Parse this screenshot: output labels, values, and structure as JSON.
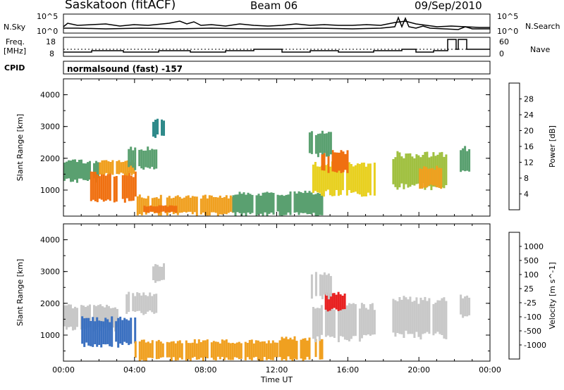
{
  "header": {
    "station": "Saskatoon (fitACF)",
    "beam": "Beam 06",
    "date": "09/Sep/2010"
  },
  "noise_panel": {
    "left_label": "N.Sky",
    "right_label": "N.Search",
    "left_ticks": [
      "10^5",
      "10^0"
    ],
    "right_ticks": [
      "10^5",
      "10^0"
    ]
  },
  "freq_panel": {
    "left_label_1": "Freq.",
    "left_label_2": "[MHz]",
    "right_label": "Nave",
    "left_ticks": [
      "18",
      "8"
    ],
    "right_ticks": [
      "60",
      "0"
    ]
  },
  "cpid": {
    "label": "CPID",
    "text": "normalsound (fast) -157"
  },
  "colors": {
    "power_scale": [
      "#1030ff",
      "#2550b0",
      "#2f8a8a",
      "#5aa070",
      "#a0c040",
      "#e8d020",
      "#f0a020",
      "#f07010",
      "#e82020"
    ],
    "velocity_scale": [
      "#2030b0",
      "#3a70c0",
      "#3aa060",
      "#70d040",
      "#c8c8c8",
      "#f0d020",
      "#f0a020",
      "#f07010",
      "#e82020"
    ]
  },
  "chart_data": [
    {
      "type": "heatmap",
      "title": "Power",
      "ylabel": "Slant Range [km]",
      "xlabel": "",
      "ylim": [
        180,
        4500
      ],
      "yticks": [
        "1000",
        "2000",
        "3000",
        "4000"
      ],
      "colorbar_label": "Power [dB]",
      "colorbar_ticks": [
        "4",
        "8",
        "12",
        "16",
        "20",
        "24",
        "28"
      ],
      "colorbar_range": [
        0,
        30
      ],
      "regions": [
        {
          "t": [
            0.0,
            2.0
          ],
          "r": [
            1300,
            1900
          ],
          "v": 12
        },
        {
          "t": [
            1.5,
            4.2
          ],
          "r": [
            700,
            1500
          ],
          "v": 26
        },
        {
          "t": [
            2.0,
            4.0
          ],
          "r": [
            1500,
            1900
          ],
          "v": 22
        },
        {
          "t": [
            4.0,
            9.5
          ],
          "r": [
            250,
            800
          ],
          "v": 20
        },
        {
          "t": [
            4.5,
            6.5
          ],
          "r": [
            300,
            500
          ],
          "v": 26
        },
        {
          "t": [
            5.0,
            5.7
          ],
          "r": [
            2700,
            3200
          ],
          "v": 8
        },
        {
          "t": [
            3.5,
            5.2
          ],
          "r": [
            1700,
            2300
          ],
          "v": 10
        },
        {
          "t": [
            9.5,
            14.5
          ],
          "r": [
            250,
            900
          ],
          "v": 12
        },
        {
          "t": [
            14.0,
            17.5
          ],
          "r": [
            900,
            1800
          ],
          "v": 18
        },
        {
          "t": [
            14.5,
            16.0
          ],
          "r": [
            1600,
            2200
          ],
          "v": 24
        },
        {
          "t": [
            13.8,
            15.0
          ],
          "r": [
            2100,
            2800
          ],
          "v": 12
        },
        {
          "t": [
            18.5,
            21.5
          ],
          "r": [
            1100,
            2100
          ],
          "v": 14
        },
        {
          "t": [
            20.0,
            21.3
          ],
          "r": [
            1100,
            1700
          ],
          "v": 22
        },
        {
          "t": [
            22.3,
            22.8
          ],
          "r": [
            1600,
            2300
          ],
          "v": 10
        }
      ]
    },
    {
      "type": "heatmap",
      "title": "Velocity",
      "ylabel": "Slant Range [km]",
      "xlabel": "Time UT",
      "ylim": [
        180,
        4500
      ],
      "yticks": [
        "1000",
        "2000",
        "3000",
        "4000"
      ],
      "xticks": [
        "00:00",
        "04:00",
        "08:00",
        "12:00",
        "16:00",
        "20:00",
        "00:00"
      ],
      "xlim": [
        0,
        24
      ],
      "colorbar_label": "Velocity [m s^-1]",
      "colorbar_ticks": [
        "1000",
        "500",
        "100",
        "25",
        "-25",
        "-100",
        "-500",
        "-1000"
      ],
      "regions": [
        {
          "t": [
            0.0,
            3.0
          ],
          "r": [
            1200,
            1900
          ],
          "v": 0
        },
        {
          "t": [
            1.0,
            4.0
          ],
          "r": [
            700,
            1500
          ],
          "v": 150
        },
        {
          "t": [
            4.0,
            12.0
          ],
          "r": [
            250,
            800
          ],
          "v": -200
        },
        {
          "t": [
            5.0,
            5.7
          ],
          "r": [
            2700,
            3200
          ],
          "v": 0
        },
        {
          "t": [
            3.5,
            5.2
          ],
          "r": [
            1700,
            2300
          ],
          "v": 0
        },
        {
          "t": [
            12.0,
            14.5
          ],
          "r": [
            250,
            900
          ],
          "v": -200
        },
        {
          "t": [
            14.0,
            17.5
          ],
          "r": [
            900,
            1900
          ],
          "v": 0
        },
        {
          "t": [
            14.7,
            15.8
          ],
          "r": [
            1800,
            2300
          ],
          "v": -900
        },
        {
          "t": [
            13.8,
            15.0
          ],
          "r": [
            2200,
            2900
          ],
          "v": 0
        },
        {
          "t": [
            18.5,
            21.5
          ],
          "r": [
            1000,
            2100
          ],
          "v": 0
        },
        {
          "t": [
            22.3,
            22.8
          ],
          "r": [
            1600,
            2200
          ],
          "v": 0
        }
      ]
    }
  ]
}
